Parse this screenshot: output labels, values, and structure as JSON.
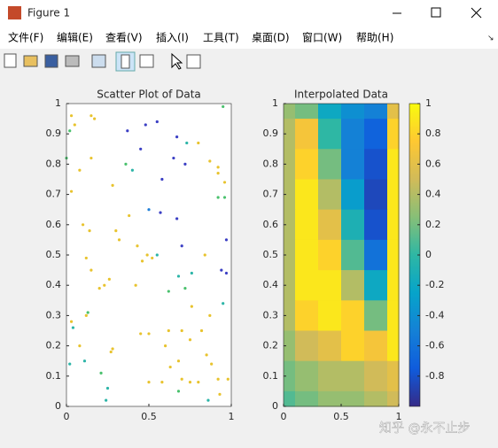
{
  "window": {
    "title": "Figure 1",
    "menu": [
      "文件(F)",
      "编辑(E)",
      "查看(V)",
      "插入(I)",
      "工具(T)",
      "桌面(D)",
      "窗口(W)",
      "帮助(H)"
    ]
  },
  "chart_data": [
    {
      "type": "scatter",
      "title": "Scatter Plot of Data",
      "x": [
        0.03,
        0.05,
        0.15,
        0.17,
        0.02,
        0.37,
        0.48,
        0.55,
        0.67,
        0.95,
        0.73,
        0.8,
        0.45,
        0.0,
        0.15,
        0.65,
        0.72,
        0.87,
        0.92,
        0.36,
        0.08,
        0.4,
        0.92,
        0.96,
        0.58,
        0.28,
        0.03,
        0.5,
        0.57,
        0.92,
        0.96,
        0.67,
        0.38,
        0.1,
        0.14,
        0.3,
        0.32,
        0.97,
        0.43,
        0.84,
        0.7,
        0.49,
        0.52,
        0.55,
        0.46,
        0.12,
        0.94,
        0.97,
        0.15,
        0.76,
        0.68,
        0.23,
        0.26,
        0.42,
        0.2,
        0.72,
        0.62,
        0.95,
        0.13,
        0.76,
        0.12,
        0.87,
        0.03,
        0.04,
        0.82,
        0.45,
        0.62,
        0.7,
        0.5,
        0.75,
        0.08,
        0.28,
        0.27,
        0.6,
        0.85,
        0.68,
        0.02,
        0.11,
        0.88,
        0.63,
        0.21,
        0.98,
        0.7,
        0.75,
        0.58,
        0.5,
        0.8,
        0.25,
        0.68,
        0.93,
        0.86,
        0.24,
        0.92
      ],
      "values": [
        0.96,
        0.93,
        0.96,
        0.95,
        0.91,
        0.91,
        0.93,
        0.94,
        0.89,
        0.99,
        0.87,
        0.87,
        0.85,
        0.82,
        0.82,
        0.82,
        0.8,
        0.81,
        0.79,
        0.8,
        0.78,
        0.78,
        0.77,
        0.74,
        0.75,
        0.73,
        0.71,
        0.65,
        0.64,
        0.69,
        0.69,
        0.62,
        0.63,
        0.6,
        0.58,
        0.58,
        0.55,
        0.55,
        0.53,
        0.5,
        0.53,
        0.5,
        0.49,
        0.5,
        0.48,
        0.49,
        0.45,
        0.44,
        0.45,
        0.44,
        0.43,
        0.4,
        0.42,
        0.4,
        0.39,
        0.39,
        0.38,
        0.34,
        0.31,
        0.33,
        0.3,
        0.3,
        0.28,
        0.26,
        0.25,
        0.24,
        0.25,
        0.25,
        0.24,
        0.22,
        0.2,
        0.19,
        0.18,
        0.2,
        0.17,
        0.15,
        0.14,
        0.15,
        0.14,
        0.13,
        0.11,
        0.09,
        0.09,
        0.08,
        0.08,
        0.08,
        0.08,
        0.06,
        0.05,
        0.04,
        0.02,
        0.02,
        0.09
      ],
      "point_colors": [
        "#e8c32e",
        "#e8c32e",
        "#e8c32e",
        "#e8c32e",
        "#4ac16d",
        "#3b3fc4",
        "#3b3fc4",
        "#3b3fc4",
        "#3b3fc4",
        "#4ac16d",
        "#2db5a8",
        "#e8c32e",
        "#3b3fc4",
        "#4ac16d",
        "#e8c32e",
        "#3b3fc4",
        "#3b3fc4",
        "#e8c32e",
        "#e8c32e",
        "#4ac16d",
        "#e8c32e",
        "#2db5a8",
        "#e8c32e",
        "#e8c32e",
        "#3b3fc4",
        "#e8c32e",
        "#e8c32e",
        "#1f7fd8",
        "#3b3fc4",
        "#4ac16d",
        "#4ac16d",
        "#3b3fc4",
        "#e8c32e",
        "#e8c32e",
        "#e8c32e",
        "#e8c32e",
        "#e8c32e",
        "#3b3fc4",
        "#e8c32e",
        "#e8c32e",
        "#3b3fc4",
        "#e8c32e",
        "#e8c32e",
        "#2db5a8",
        "#e8c32e",
        "#e8c32e",
        "#3b3fc4",
        "#3b3fc4",
        "#e8c32e",
        "#2db5a8",
        "#2db5a8",
        "#e8c32e",
        "#e8c32e",
        "#e8c32e",
        "#e8c32e",
        "#4ac16d",
        "#4ac16d",
        "#2db5a8",
        "#4ac16d",
        "#e8c32e",
        "#e8c32e",
        "#e8c32e",
        "#e8c32e",
        "#2db5a8",
        "#e8c32e",
        "#e8c32e",
        "#e8c32e",
        "#e8c32e",
        "#e8c32e",
        "#e8c32e",
        "#e8c32e",
        "#e8c32e",
        "#e8c32e",
        "#e8c32e",
        "#e8c32e",
        "#e8c32e",
        "#2db5a8",
        "#2db5a8",
        "#e8c32e",
        "#e8c32e",
        "#4ac16d",
        "#e8c32e",
        "#e8c32e",
        "#e8c32e",
        "#e8c32e",
        "#e8c32e",
        "#e8c32e",
        "#2db5a8",
        "#4ac16d",
        "#e8c32e",
        "#2db5a8",
        "#2db5a8",
        "#e8c32e"
      ],
      "xlim": [
        0,
        1
      ],
      "ylim": [
        0,
        1
      ],
      "xticks": [
        0,
        0.5,
        1
      ],
      "yticks": [
        0,
        0.1,
        0.2,
        0.3,
        0.4,
        0.5,
        0.6,
        0.7,
        0.8,
        0.9,
        1
      ]
    },
    {
      "type": "contourf",
      "title": "Interpolated Data",
      "x": [
        0,
        0.2,
        0.4,
        0.6,
        0.8,
        1
      ],
      "y": [
        1,
        0.9,
        0.8,
        0.7,
        0.6,
        0.5,
        0.4,
        0.3,
        0.2,
        0.1,
        0
      ],
      "z": [
        [
          0.3,
          0.2,
          -0.2,
          -0.4,
          -0.5,
          0.6
        ],
        [
          0.4,
          0.7,
          0.0,
          -0.5,
          -0.7,
          0.8
        ],
        [
          0.4,
          0.8,
          0.2,
          -0.5,
          -0.8,
          0.9
        ],
        [
          0.4,
          0.9,
          0.4,
          -0.3,
          -0.85,
          0.9
        ],
        [
          0.4,
          0.9,
          0.6,
          -0.1,
          -0.8,
          0.9
        ],
        [
          0.4,
          0.9,
          0.8,
          0.1,
          -0.6,
          0.9
        ],
        [
          0.4,
          0.9,
          0.9,
          0.4,
          -0.2,
          0.9
        ],
        [
          0.4,
          0.8,
          0.9,
          0.8,
          0.2,
          0.9
        ],
        [
          0.3,
          0.5,
          0.6,
          0.8,
          0.7,
          0.9
        ],
        [
          0.2,
          0.3,
          0.4,
          0.4,
          0.5,
          0.6
        ],
        [
          0.1,
          0.2,
          0.3,
          0.3,
          0.4,
          0.5
        ]
      ],
      "xlim": [
        0,
        1
      ],
      "ylim": [
        0,
        1
      ],
      "xticks": [
        0,
        0.5,
        1
      ],
      "yticks": [
        0,
        0.1,
        0.2,
        0.3,
        0.4,
        0.5,
        0.6,
        0.7,
        0.8,
        0.9,
        1
      ],
      "clim": [
        -1,
        1
      ],
      "colormap": [
        "#352a87",
        "#0f5cdd",
        "#1481d6",
        "#06a4ca",
        "#2eb7a4",
        "#87bf77",
        "#d1bb59",
        "#fec832",
        "#f9fb0e"
      ],
      "colorbar_ticks": [
        -0.8,
        -0.6,
        -0.4,
        -0.2,
        0,
        0.2,
        0.4,
        0.6,
        0.8,
        1
      ]
    }
  ],
  "watermark": "知乎 @永不止步"
}
